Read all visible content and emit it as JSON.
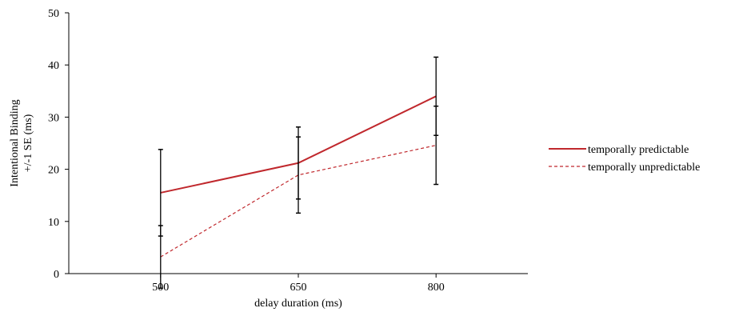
{
  "chart_data": {
    "type": "line",
    "title": "",
    "xlabel": "delay duration (ms)",
    "ylabel_lines": [
      "Intentional Binding",
      "+/-1 SE (ms)"
    ],
    "categories": [
      500,
      650,
      800
    ],
    "xlim": [
      400,
      900
    ],
    "ylim": [
      0,
      50
    ],
    "yticks": [
      0,
      10,
      20,
      30,
      40,
      50
    ],
    "grid": false,
    "legend_position": "right",
    "series": [
      {
        "name": "temporally predictable",
        "style": "solid",
        "color": "#c0282d",
        "values": [
          15.5,
          21.2,
          34
        ],
        "error": [
          8.3,
          6.9,
          7.5
        ]
      },
      {
        "name": "temporally unpredictable",
        "style": "dashed",
        "color": "#c0282d",
        "values": [
          3.2,
          18.9,
          24.6
        ],
        "error": [
          6.0,
          7.3,
          7.5
        ]
      }
    ]
  }
}
